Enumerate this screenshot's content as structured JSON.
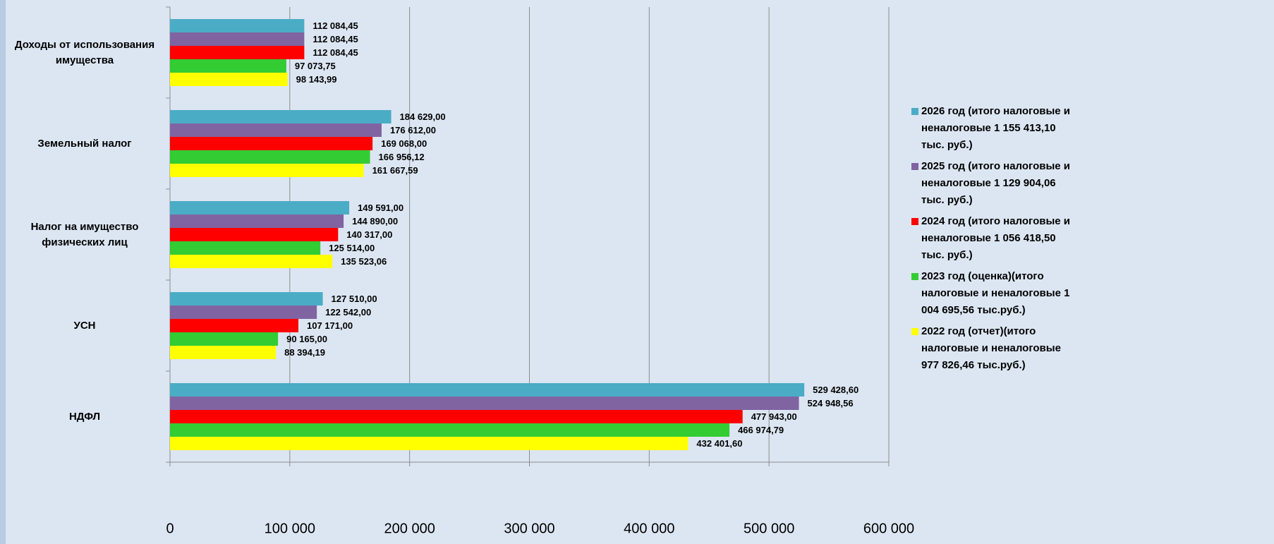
{
  "chart_data": {
    "type": "bar",
    "orientation": "horizontal",
    "categories": [
      "Доходы от использования имущества",
      "Земельный налог",
      "Налог на имущество физических лиц",
      "УСН",
      "НДФЛ"
    ],
    "series": [
      {
        "name": "2026 год (итого налоговые и неналоговые 1 155 413,10 тыс. руб.)",
        "color": "#4bacc6",
        "values": [
          112084.45,
          184629.0,
          149591.0,
          127510.0,
          529428.6
        ],
        "value_labels": [
          "112 084,45",
          "184 629,00",
          "149 591,00",
          "127 510,00",
          "529 428,60"
        ]
      },
      {
        "name": "2025 год (итого налоговые и неналоговые 1 129 904,06 тыс. руб.)",
        "color": "#8064a2",
        "values": [
          112084.45,
          176612.0,
          144890.0,
          122542.0,
          524948.56
        ],
        "value_labels": [
          "112 084,45",
          "176 612,00",
          "144 890,00",
          "122 542,00",
          "524 948,56"
        ]
      },
      {
        "name": "2024 год (итого налоговые и неналоговые 1 056 418,50 тыс. руб.)",
        "color": "#ff0000",
        "values": [
          112084.45,
          169068.0,
          140317.0,
          107171.0,
          477943.0
        ],
        "value_labels": [
          "112 084,45",
          "169 068,00",
          "140 317,00",
          "107 171,00",
          "477 943,00"
        ]
      },
      {
        "name": "2023 год (оценка)(итого налоговые и неналоговые 1 004 695,56 тыс.руб.)",
        "color": "#33cc33",
        "values": [
          97073.75,
          166956.12,
          125514.0,
          90165.0,
          466974.79
        ],
        "value_labels": [
          "97 073,75",
          "166 956,12",
          "125 514,00",
          "90 165,00",
          "466 974,79"
        ]
      },
      {
        "name": "2022 год (отчет)(итого налоговые и неналоговые 977 826,46 тыс.руб.)",
        "color": "#ffff00",
        "values": [
          98143.99,
          161667.59,
          135523.06,
          88394.19,
          432401.6
        ],
        "value_labels": [
          "98 143,99",
          "161 667,59",
          "135 523,06",
          "88 394,19",
          "432 401,60"
        ]
      }
    ],
    "xlim": [
      0,
      600000
    ],
    "xticks": [
      0,
      {
        "value": 100000,
        "label": "100 000"
      },
      {
        "value": 200000,
        "label": "200 000"
      },
      {
        "value": 300000,
        "label": "300 000"
      },
      {
        "value": 400000,
        "label": "400 000"
      },
      {
        "value": 500000,
        "label": "500 000"
      },
      {
        "value": 600000,
        "label": "600 000"
      }
    ],
    "grid": true,
    "legend": "right"
  }
}
